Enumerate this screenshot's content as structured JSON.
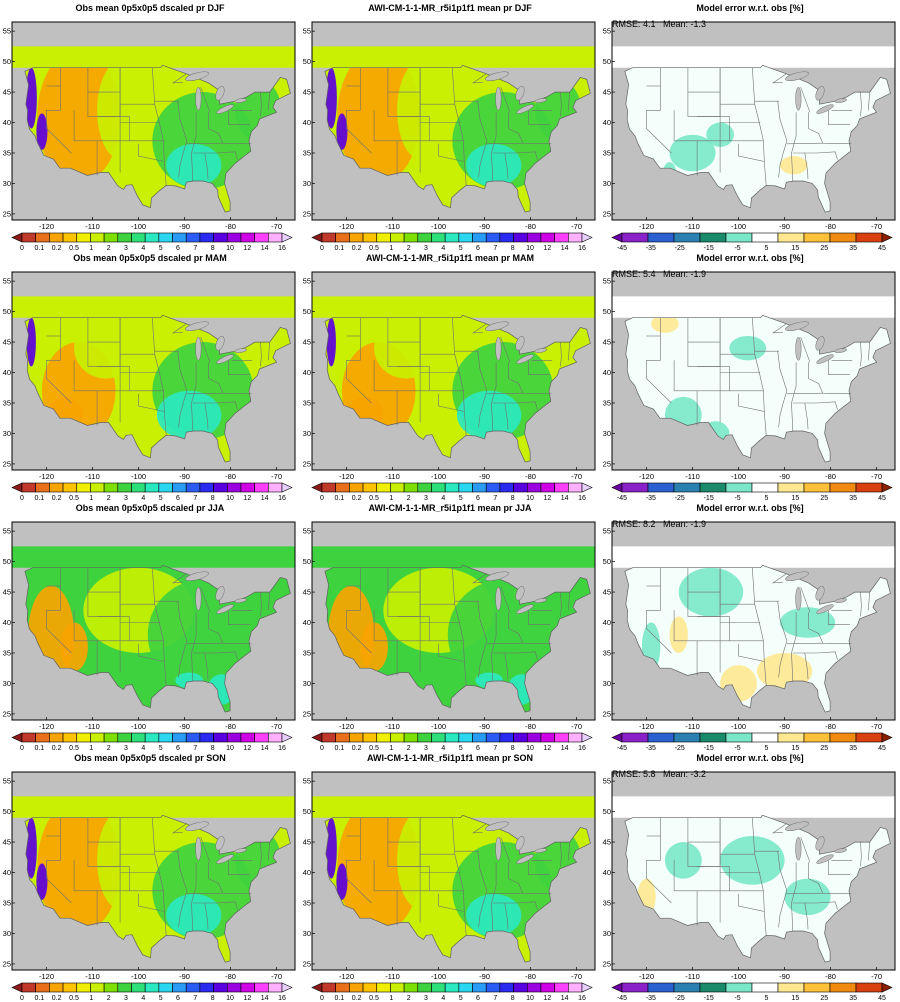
{
  "figure": {
    "seasons": [
      "DJF",
      "MAM",
      "JJA",
      "SON"
    ],
    "rows": [
      {
        "season": "DJF",
        "obs_title": "Obs mean 0p5x0p5 dscaled pr DJF",
        "model_title": "AWI-CM-1-1-MR_r5i1p1f1 mean pr DJF",
        "error_title": "Model error w.r.t. obs [%]",
        "error_stats": "RMSE: 4.1   Mean: -1.3"
      },
      {
        "season": "MAM",
        "obs_title": "Obs mean 0p5x0p5 dscaled pr MAM",
        "model_title": "AWI-CM-1-1-MR_r5i1p1f1 mean pr MAM",
        "error_title": "Model error w.r.t. obs [%]",
        "error_stats": "RMSE: 5.4   Mean: -1.9"
      },
      {
        "season": "JJA",
        "obs_title": "Obs mean 0p5x0p5 dscaled pr JJA",
        "model_title": "AWI-CM-1-1-MR_r5i1p1f1 mean pr JJA",
        "error_title": "Model error w.r.t. obs [%]",
        "error_stats": "RMSE: 8.2   Mean: -1.9"
      },
      {
        "season": "SON",
        "obs_title": "Obs mean 0p5x0p5 dscaled pr SON",
        "model_title": "AWI-CM-1-1-MR_r5i1p1f1 mean pr SON",
        "error_title": "Model error w.r.t. obs [%]",
        "error_stats": "RMSE: 5.8   Mean: -3.2"
      }
    ],
    "lon_ticks": [
      "-120",
      "-110",
      "-100",
      "-90",
      "-80",
      "-70"
    ],
    "lat_ticks": [
      "55",
      "50",
      "45",
      "40",
      "35",
      "30",
      "25"
    ],
    "precip_colorbar": {
      "labels": [
        "0",
        "0.1",
        "0.2",
        "0.5",
        "1",
        "2",
        "3",
        "4",
        "5",
        "6",
        "7",
        "8",
        "10",
        "12",
        "14",
        "16"
      ],
      "colors": [
        "#8b1a1a",
        "#c0392b",
        "#e8701a",
        "#f7a400",
        "#ffc300",
        "#f0ef00",
        "#c8f000",
        "#7ee000",
        "#3fd23f",
        "#2ee07a",
        "#2ae8c0",
        "#2ad6f0",
        "#2a9cf5",
        "#2a5cf5",
        "#2a2af0",
        "#5a00e0",
        "#9a00e0",
        "#d000e6",
        "#ff40ff",
        "#ffb0ff",
        "#e8d0ff"
      ]
    },
    "error_colorbar": {
      "labels": [
        "-45",
        "-35",
        "-25",
        "-15",
        "-5",
        "5",
        "15",
        "25",
        "35",
        "45"
      ],
      "colors": [
        "#6a00a0",
        "#8a20c8",
        "#2a60d0",
        "#2a80b0",
        "#1a8a6a",
        "#7ae8c8",
        "#ffffff",
        "#ffe890",
        "#ffc03a",
        "#f08a10",
        "#d84010",
        "#8b2000"
      ]
    },
    "field_colors": {
      "land_mask": "#c0c0c0",
      "error_background": "#f4fffc",
      "precip_dry": "#f7a400",
      "precip_semi": "#c8f000",
      "precip_wet": "#3fd23f",
      "precip_very_wet": "#2ae8c0",
      "precip_coast": "#5a00e0",
      "error_positive": "#ffe890",
      "error_negative": "#7ae8c8"
    }
  }
}
